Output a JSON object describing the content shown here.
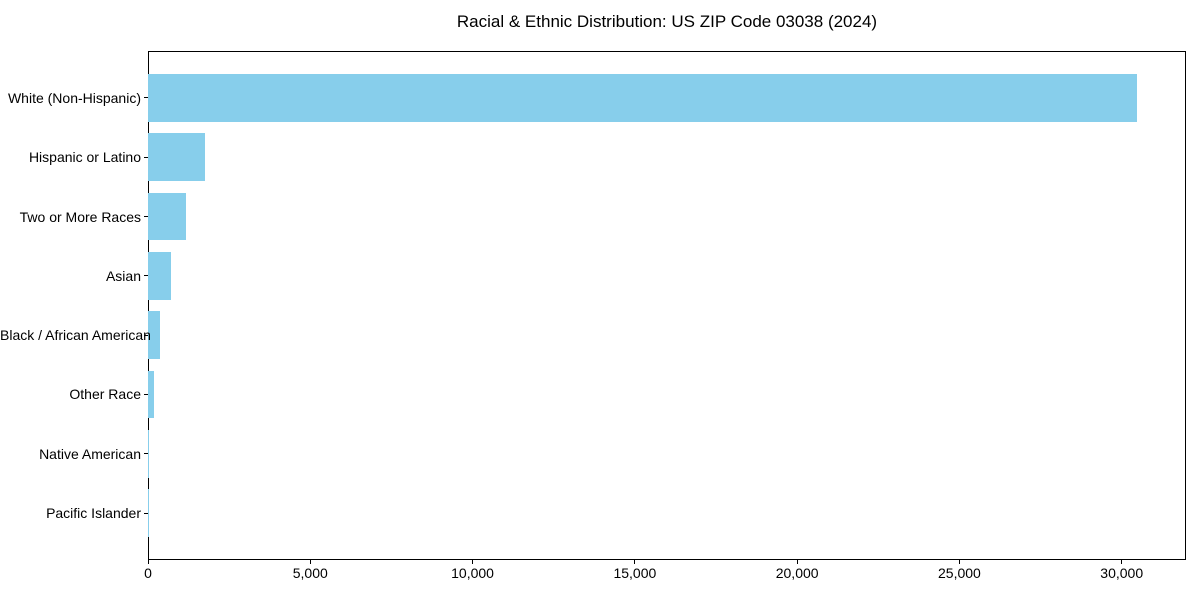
{
  "chart_data": {
    "type": "bar",
    "orientation": "horizontal",
    "title": "Racial & Ethnic Distribution: US ZIP Code 03038 (2024)",
    "categories": [
      "White (Non-Hispanic)",
      "Hispanic or Latino",
      "Two or More Races",
      "Asian",
      "Black / African American",
      "Other Race",
      "Native American",
      "Pacific Islander"
    ],
    "values": [
      30460,
      1760,
      1170,
      710,
      370,
      185,
      25,
      5
    ],
    "xlabel": "",
    "ylabel": "",
    "xlim": [
      0,
      31980
    ],
    "xticks": {
      "values": [
        0,
        5000,
        10000,
        15000,
        20000,
        25000,
        30000
      ],
      "labels": [
        "0",
        "5,000",
        "10,000",
        "15,000",
        "20,000",
        "25,000",
        "30,000"
      ]
    },
    "grid": false,
    "legend": false,
    "bar_color": "#87CEEB",
    "axis_color": "#000000",
    "background_color": "#ffffff"
  }
}
